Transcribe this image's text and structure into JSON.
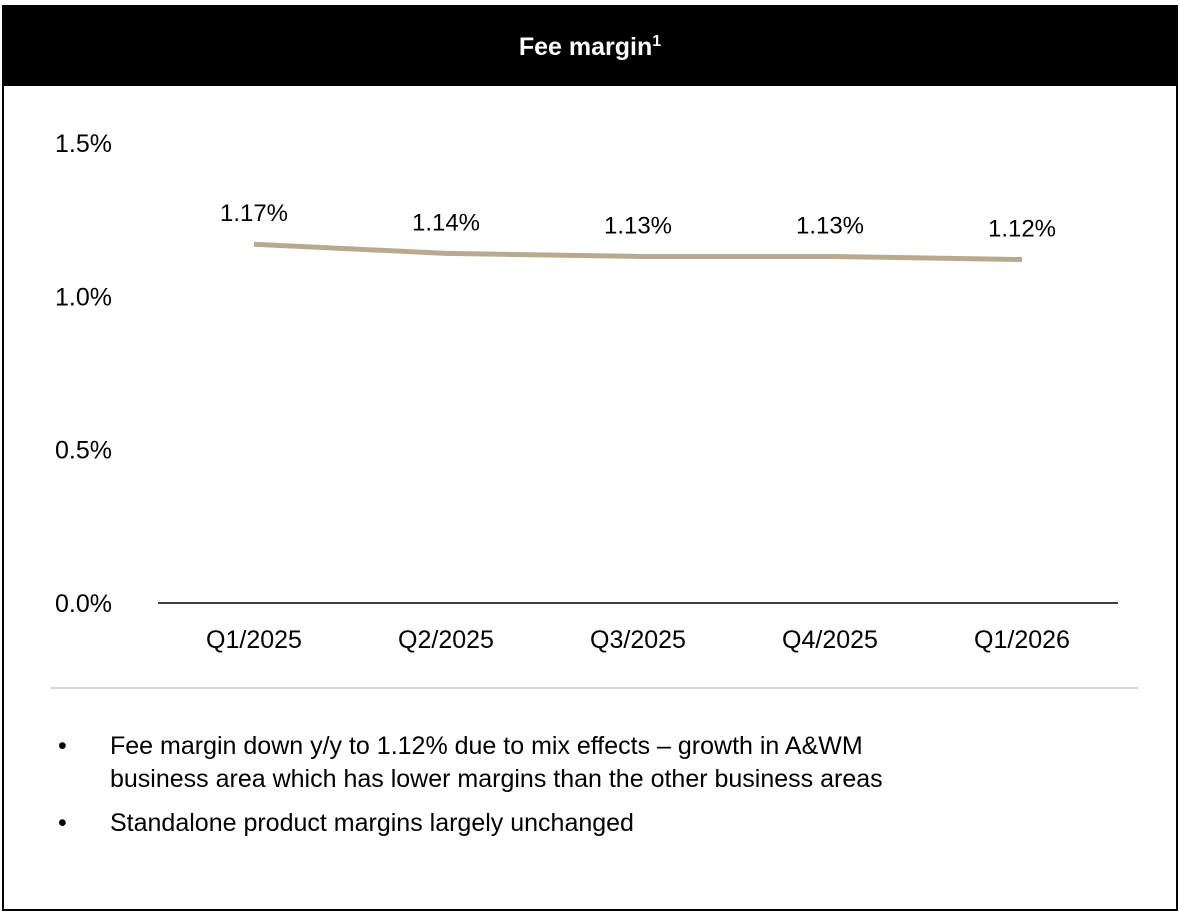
{
  "chart_data": {
    "type": "line",
    "title": "Fee margin",
    "title_footnote": "1",
    "categories": [
      "Q1/2025",
      "Q2/2025",
      "Q3/2025",
      "Q4/2025",
      "Q1/2026"
    ],
    "series": [
      {
        "color": "#b8aa8f",
        "values": [
          1.17,
          1.14,
          1.13,
          1.13,
          1.12
        ],
        "value_labels": [
          "1.17%",
          "1.14%",
          "1.13%",
          "1.13%",
          "1.12%"
        ]
      }
    ],
    "ylim": [
      0,
      1.5
    ],
    "yticks": [
      {
        "value": 0,
        "label": "0.0%"
      },
      {
        "value": 0.5,
        "label": "0.5%"
      },
      {
        "value": 1.0,
        "label": "1.0%"
      },
      {
        "value": 1.5,
        "label": "1.5%"
      }
    ],
    "grid": false,
    "notes": [
      "Fee margin down y/y to 1.12% due to mix effects – growth in A&WM",
      "business area which has lower margins than the other business areas",
      "Standalone product margins largely unchanged"
    ]
  }
}
